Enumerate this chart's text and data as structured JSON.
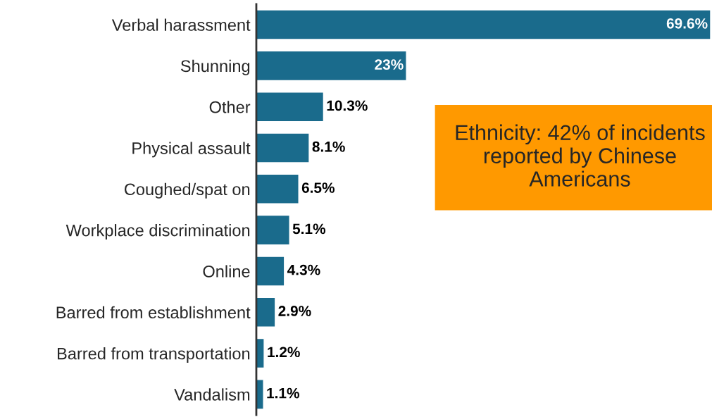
{
  "chart_data": {
    "type": "bar",
    "orientation": "horizontal",
    "categories": [
      "Verbal harassment",
      "Shunning",
      "Other",
      "Physical assault",
      "Coughed/spat on",
      "Workplace discrimination",
      "Online",
      "Barred from establishment",
      "Barred from transportation",
      "Vandalism"
    ],
    "values": [
      69.6,
      23,
      10.3,
      8.1,
      6.5,
      5.1,
      4.3,
      2.9,
      1.2,
      1.1
    ],
    "value_labels": [
      "69.6%",
      "23%",
      "10.3%",
      "8.1%",
      "6.5%",
      "5.1%",
      "4.3%",
      "2.9%",
      "1.2%",
      "1.1%"
    ],
    "color": "#1a6b8c",
    "annotations": [
      "Ethnicity: 42% of incidents reported by Chinese Americans"
    ],
    "grid": false,
    "legend": false
  }
}
